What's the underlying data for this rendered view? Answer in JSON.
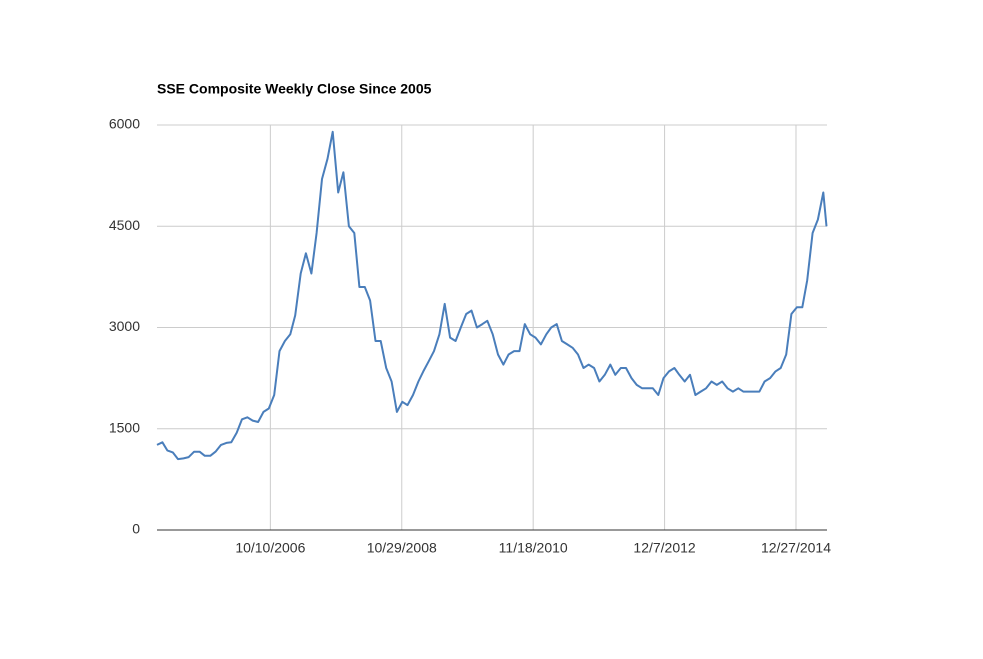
{
  "chart_data": {
    "type": "line",
    "title": "SSE Composite Weekly Close Since 2005",
    "x": [
      "1/1/2005",
      "2/1/2005",
      "3/1/2005",
      "4/1/2005",
      "5/1/2005",
      "6/1/2005",
      "7/1/2005",
      "8/1/2005",
      "9/1/2005",
      "10/1/2005",
      "11/1/2005",
      "12/1/2005",
      "1/1/2006",
      "2/1/2006",
      "3/1/2006",
      "4/1/2006",
      "5/1/2006",
      "6/1/2006",
      "7/1/2006",
      "8/1/2006",
      "9/1/2006",
      "10/1/2006",
      "11/1/2006",
      "12/1/2006",
      "1/1/2007",
      "2/1/2007",
      "3/1/2007",
      "4/1/2007",
      "5/1/2007",
      "6/1/2007",
      "7/1/2007",
      "8/1/2007",
      "9/1/2007",
      "10/1/2007",
      "11/1/2007",
      "12/1/2007",
      "1/1/2008",
      "2/1/2008",
      "3/1/2008",
      "4/1/2008",
      "5/1/2008",
      "6/1/2008",
      "7/1/2008",
      "8/1/2008",
      "9/1/2008",
      "10/1/2008",
      "11/1/2008",
      "12/1/2008",
      "1/1/2009",
      "2/1/2009",
      "3/1/2009",
      "4/1/2009",
      "5/1/2009",
      "6/1/2009",
      "7/1/2009",
      "8/1/2009",
      "9/1/2009",
      "10/1/2009",
      "11/1/2009",
      "12/1/2009",
      "1/1/2010",
      "2/1/2010",
      "3/1/2010",
      "4/1/2010",
      "5/1/2010",
      "6/1/2010",
      "7/1/2010",
      "8/1/2010",
      "9/1/2010",
      "10/1/2010",
      "11/1/2010",
      "12/1/2010",
      "1/1/2011",
      "2/1/2011",
      "3/1/2011",
      "4/1/2011",
      "5/1/2011",
      "6/1/2011",
      "7/1/2011",
      "8/1/2011",
      "9/1/2011",
      "10/1/2011",
      "11/1/2011",
      "12/1/2011",
      "1/1/2012",
      "2/1/2012",
      "3/1/2012",
      "4/1/2012",
      "5/1/2012",
      "6/1/2012",
      "7/1/2012",
      "8/1/2012",
      "9/1/2012",
      "10/1/2012",
      "11/1/2012",
      "12/1/2012",
      "1/1/2013",
      "2/1/2013",
      "3/1/2013",
      "4/1/2013",
      "5/1/2013",
      "6/1/2013",
      "7/1/2013",
      "8/1/2013",
      "9/1/2013",
      "10/1/2013",
      "11/1/2013",
      "12/1/2013",
      "1/1/2014",
      "2/1/2014",
      "3/1/2014",
      "4/1/2014",
      "5/1/2014",
      "6/1/2014",
      "7/1/2014",
      "8/1/2014",
      "9/1/2014",
      "10/1/2014",
      "11/1/2014",
      "12/1/2014",
      "1/1/2015",
      "2/1/2015",
      "3/1/2015",
      "4/1/2015",
      "5/1/2015",
      "6/1/2015",
      "6/19/2015"
    ],
    "series": [
      {
        "name": "SSE Composite",
        "color": "#4a7ebb",
        "values": [
          1260,
          1300,
          1180,
          1150,
          1050,
          1060,
          1080,
          1160,
          1160,
          1100,
          1100,
          1160,
          1260,
          1290,
          1300,
          1440,
          1640,
          1670,
          1620,
          1600,
          1750,
          1800,
          2000,
          2650,
          2800,
          2900,
          3180,
          3800,
          4100,
          3800,
          4400,
          5200,
          5500,
          5900,
          5000,
          5300,
          4500,
          4400,
          3600,
          3600,
          3400,
          2800,
          2800,
          2400,
          2200,
          1750,
          1900,
          1850,
          2000,
          2200,
          2350,
          2500,
          2650,
          2900,
          3350,
          2850,
          2800,
          3000,
          3200,
          3250,
          3000,
          3050,
          3100,
          2900,
          2600,
          2450,
          2600,
          2650,
          2650,
          3050,
          2900,
          2850,
          2750,
          2900,
          3000,
          3050,
          2800,
          2750,
          2700,
          2600,
          2400,
          2450,
          2400,
          2200,
          2300,
          2450,
          2300,
          2400,
          2400,
          2250,
          2150,
          2100,
          2100,
          2100,
          2000,
          2250,
          2350,
          2400,
          2300,
          2200,
          2300,
          2000,
          2050,
          2100,
          2200,
          2150,
          2200,
          2100,
          2050,
          2100,
          2050,
          2050,
          2050,
          2050,
          2200,
          2250,
          2350,
          2400,
          2600,
          3200,
          3300,
          3300,
          3700,
          4400,
          4600,
          5000,
          4500
        ]
      }
    ],
    "xlim": [
      "1/1/2005",
      "6/22/2015"
    ],
    "xticks": [
      "10/10/2006",
      "10/29/2008",
      "11/18/2010",
      "12/7/2012",
      "12/27/2014"
    ],
    "ylim": [
      0,
      6000
    ],
    "yticks": [
      0,
      1500,
      3000,
      4500,
      6000
    ],
    "grid": true
  }
}
